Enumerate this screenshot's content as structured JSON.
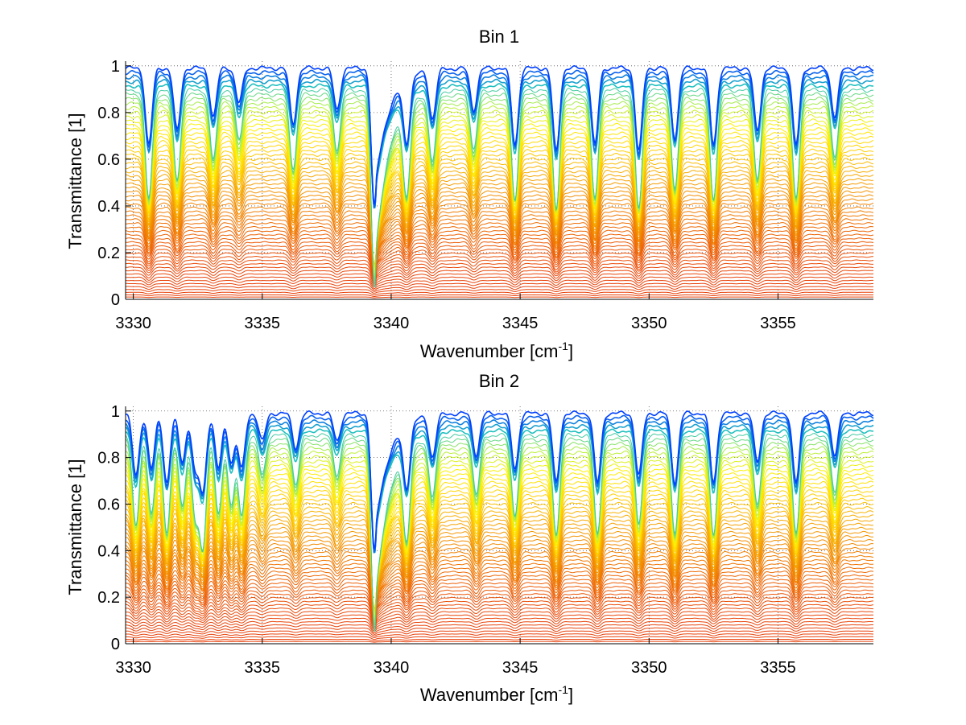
{
  "chart_data": [
    {
      "type": "line",
      "title": "Bin 1",
      "xlabel": "Wavenumber [cm",
      "xlabel_sup": "-1",
      "xlabel_end": "]",
      "ylabel": "Transmittance [1]",
      "xlim": [
        3329.7,
        3358.7
      ],
      "ylim": [
        0,
        1.02
      ],
      "xticks": [
        3330,
        3335,
        3340,
        3345,
        3350,
        3355
      ],
      "yticks": [
        0,
        0.2,
        0.4,
        0.6,
        0.8,
        1
      ],
      "ytick_labels": [
        "0",
        "0.2",
        "0.4",
        "0.6",
        "0.8",
        "1"
      ],
      "grid": "dotted",
      "series_count": 60,
      "series_levels": {
        "min": 0.01,
        "max": 0.99
      },
      "colormap": [
        "#e8400a",
        "#f07a00",
        "#f5a300",
        "#ffd000",
        "#fff000",
        "#b0f040",
        "#20c0c0",
        "#0040ff"
      ],
      "absorption_lines": [
        {
          "x": 3330.6,
          "depth": 0.55
        },
        {
          "x": 3331.7,
          "depth": 0.45
        },
        {
          "x": 3333.1,
          "depth": 0.35
        },
        {
          "x": 3334.1,
          "depth": 0.25
        },
        {
          "x": 3336.2,
          "depth": 0.4
        },
        {
          "x": 3337.9,
          "depth": 0.3
        },
        {
          "x": 3339.35,
          "depth": 1.0,
          "width": 0.12,
          "tail": 0.9
        },
        {
          "x": 3340.6,
          "depth": 0.45
        },
        {
          "x": 3341.6,
          "depth": 0.35
        },
        {
          "x": 3343.2,
          "depth": 0.3
        },
        {
          "x": 3344.8,
          "depth": 0.55
        },
        {
          "x": 3346.4,
          "depth": 0.6
        },
        {
          "x": 3347.9,
          "depth": 0.55
        },
        {
          "x": 3349.6,
          "depth": 0.6
        },
        {
          "x": 3351.0,
          "depth": 0.5
        },
        {
          "x": 3352.5,
          "depth": 0.55
        },
        {
          "x": 3354.2,
          "depth": 0.45
        },
        {
          "x": 3355.7,
          "depth": 0.55
        },
        {
          "x": 3357.2,
          "depth": 0.35
        }
      ]
    },
    {
      "type": "line",
      "title": "Bin 2",
      "xlabel": "Wavenumber [cm",
      "xlabel_sup": "-1",
      "xlabel_end": "]",
      "ylabel": "Transmittance [1]",
      "xlim": [
        3329.7,
        3358.7
      ],
      "ylim": [
        0,
        1.02
      ],
      "xticks": [
        3330,
        3335,
        3340,
        3345,
        3350,
        3355
      ],
      "yticks": [
        0,
        0.2,
        0.4,
        0.6,
        0.8,
        1
      ],
      "ytick_labels": [
        "0",
        "0.2",
        "0.4",
        "0.6",
        "0.8",
        "1"
      ],
      "grid": "dotted",
      "series_count": 60,
      "series_levels": {
        "min": 0.01,
        "max": 0.99
      },
      "colormap": [
        "#e8400a",
        "#f07a00",
        "#f5a300",
        "#ffd000",
        "#fff000",
        "#b0f040",
        "#20c0c0",
        "#0040ff"
      ],
      "absorption_lines": [
        {
          "x": 3330.1,
          "depth": 0.45
        },
        {
          "x": 3330.7,
          "depth": 0.4
        },
        {
          "x": 3331.3,
          "depth": 0.5
        },
        {
          "x": 3331.9,
          "depth": 0.35
        },
        {
          "x": 3332.4,
          "depth": 0.4
        },
        {
          "x": 3332.7,
          "depth": 0.55
        },
        {
          "x": 3333.3,
          "depth": 0.4
        },
        {
          "x": 3333.8,
          "depth": 0.35
        },
        {
          "x": 3334.2,
          "depth": 0.4
        },
        {
          "x": 3335.0,
          "depth": 0.2
        },
        {
          "x": 3336.3,
          "depth": 0.25
        },
        {
          "x": 3337.9,
          "depth": 0.2
        },
        {
          "x": 3339.35,
          "depth": 1.0,
          "width": 0.12,
          "tail": 0.9
        },
        {
          "x": 3340.6,
          "depth": 0.45
        },
        {
          "x": 3341.6,
          "depth": 0.3
        },
        {
          "x": 3343.3,
          "depth": 0.3
        },
        {
          "x": 3344.8,
          "depth": 0.4
        },
        {
          "x": 3346.4,
          "depth": 0.5
        },
        {
          "x": 3348.0,
          "depth": 0.5
        },
        {
          "x": 3349.6,
          "depth": 0.45
        },
        {
          "x": 3351.0,
          "depth": 0.5
        },
        {
          "x": 3352.5,
          "depth": 0.5
        },
        {
          "x": 3354.2,
          "depth": 0.35
        },
        {
          "x": 3355.7,
          "depth": 0.5
        },
        {
          "x": 3357.2,
          "depth": 0.3
        }
      ]
    }
  ]
}
